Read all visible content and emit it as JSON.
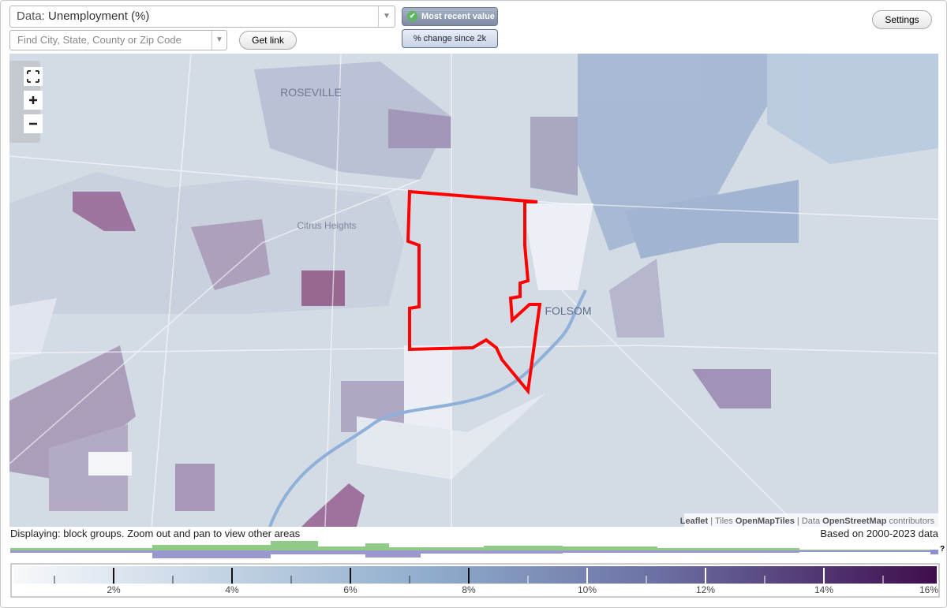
{
  "controls": {
    "data_label": "Data:",
    "data_value": "Unemployment (%)",
    "search_placeholder": "Find City, State, County or Zip Code",
    "get_link": "Get link",
    "mode_active": "Most recent value",
    "mode_other": "% change since 2k",
    "settings": "Settings"
  },
  "map": {
    "labels": [
      "ROSEVILLE",
      "Citrus Heights",
      "FOLSOM"
    ],
    "attribution": {
      "leaflet": "Leaflet",
      "sep1": "|",
      "tiles": "Tiles",
      "tiles_src": "OpenMapTiles",
      "sep2": "|",
      "data": "Data",
      "data_src": "OpenStreetMap",
      "contributors": "contributors"
    }
  },
  "status": {
    "displaying": "Displaying: block groups. Zoom out and pan to view other areas",
    "based_on": "Based on 2000-2023 data",
    "unknown": "?"
  },
  "legend": {
    "ticks": [
      "2%",
      "4%",
      "6%",
      "8%",
      "10%",
      "12%",
      "14%",
      "16%"
    ]
  }
}
